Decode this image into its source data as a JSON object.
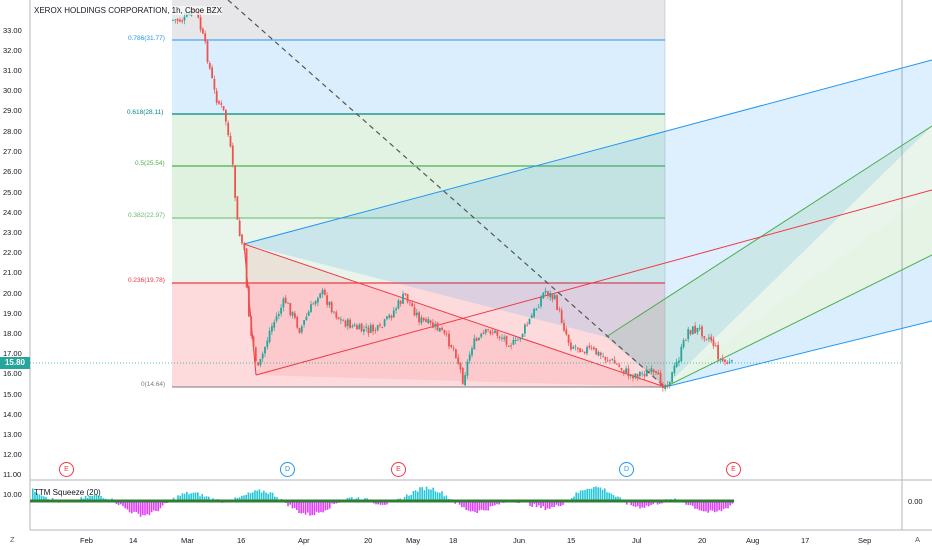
{
  "symbol_title": "XEROX HOLDINGS CORPORATION, 1h, Cboe BZX",
  "y_axis_labels": [
    "33.00",
    "32.00",
    "31.00",
    "30.00",
    "29.00",
    "28.00",
    "27.00",
    "26.00",
    "25.00",
    "24.00",
    "23.00",
    "22.00",
    "21.00",
    "20.00",
    "19.00",
    "18.00",
    "17.00",
    "16.00",
    "15.00",
    "14.00",
    "13.00",
    "12.00",
    "11.00",
    "10.00"
  ],
  "x_axis_labels": [
    "Feb",
    "14",
    "Mar",
    "16",
    "Apr",
    "20",
    "May",
    "18",
    "Jun",
    "15",
    "Jul",
    "20",
    "Aug",
    "17",
    "Sep"
  ],
  "current_price": "15.80",
  "fib_levels": [
    {
      "label": "0.786(31.77)",
      "color": "#2196f3"
    },
    {
      "label": "0.618(28.11)",
      "color": "#00897b"
    },
    {
      "label": "0.5(25.54)",
      "color": "#4caf50"
    },
    {
      "label": "0.382(22.97)",
      "color": "#66bb6a"
    },
    {
      "label": "0.236(19.78)",
      "color": "#f23645"
    },
    {
      "label": "0(14.64)",
      "color": "#787b86"
    }
  ],
  "events": [
    {
      "label": "E",
      "color": "#f23645"
    },
    {
      "label": "D",
      "color": "#2196f3"
    },
    {
      "label": "E",
      "color": "#f23645"
    },
    {
      "label": "D",
      "color": "#2196f3"
    },
    {
      "label": "E",
      "color": "#f23645"
    }
  ],
  "indicator": {
    "label": "TTM Squeeze (20)",
    "value": "0.00"
  },
  "corner_left": "Z",
  "corner_right": "A",
  "colors": {
    "up": "#26a69a",
    "down": "#ef5350",
    "blue": "#2196f3",
    "green": "#4caf50",
    "red": "#f23645"
  }
}
